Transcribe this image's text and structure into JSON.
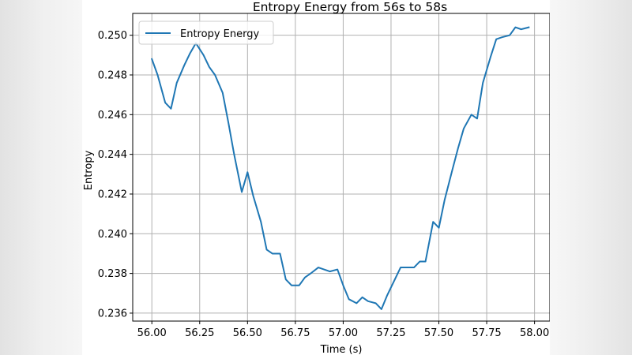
{
  "chart_data": {
    "type": "line",
    "title": "Entropy Energy from 56s to 58s",
    "xlabel": "Time (s)",
    "ylabel": "Entropy",
    "xlim": [
      55.9,
      58.08
    ],
    "ylim": [
      0.2356,
      0.2511
    ],
    "xticks": [
      56.0,
      56.25,
      56.5,
      56.75,
      57.0,
      57.25,
      57.5,
      57.75,
      58.0
    ],
    "xtick_labels": [
      "56.00",
      "56.25",
      "56.50",
      "56.75",
      "57.00",
      "57.25",
      "57.50",
      "57.75",
      "58.00"
    ],
    "yticks": [
      0.236,
      0.238,
      0.24,
      0.242,
      0.244,
      0.246,
      0.248,
      0.25
    ],
    "ytick_labels": [
      "0.236",
      "0.238",
      "0.240",
      "0.242",
      "0.244",
      "0.246",
      "0.248",
      "0.250"
    ],
    "grid": true,
    "legend_position": "top-left",
    "series": [
      {
        "name": "Entropy Energy",
        "color": "#1f77b4",
        "x": [
          56.0,
          56.03,
          56.07,
          56.1,
          56.13,
          56.17,
          56.2,
          56.23,
          56.27,
          56.3,
          56.33,
          56.37,
          56.4,
          56.43,
          56.47,
          56.5,
          56.53,
          56.57,
          56.6,
          56.63,
          56.67,
          56.7,
          56.73,
          56.77,
          56.8,
          56.83,
          56.87,
          56.9,
          56.93,
          56.97,
          57.0,
          57.03,
          57.07,
          57.1,
          57.13,
          57.17,
          57.2,
          57.23,
          57.27,
          57.3,
          57.33,
          57.37,
          57.4,
          57.43,
          57.47,
          57.5,
          57.53,
          57.57,
          57.6,
          57.63,
          57.67,
          57.7,
          57.73,
          57.77,
          57.8,
          57.83,
          57.87,
          57.9,
          57.93,
          57.97
        ],
        "y": [
          0.2488,
          0.248,
          0.2466,
          0.2463,
          0.2476,
          0.2485,
          0.2491,
          0.2496,
          0.249,
          0.2484,
          0.248,
          0.2471,
          0.2456,
          0.244,
          0.2421,
          0.2431,
          0.2419,
          0.2406,
          0.2392,
          0.239,
          0.239,
          0.2377,
          0.2374,
          0.2374,
          0.2378,
          0.238,
          0.2383,
          0.2382,
          0.2381,
          0.2382,
          0.2374,
          0.2367,
          0.2365,
          0.2368,
          0.2366,
          0.2365,
          0.2362,
          0.2369,
          0.2377,
          0.2383,
          0.2383,
          0.2383,
          0.2386,
          0.2386,
          0.2406,
          0.2403,
          0.2417,
          0.2432,
          0.2443,
          0.2453,
          0.246,
          0.2458,
          0.2476,
          0.2489,
          0.2498,
          0.2499,
          0.25,
          0.2504,
          0.2503,
          0.2504
        ]
      }
    ]
  }
}
